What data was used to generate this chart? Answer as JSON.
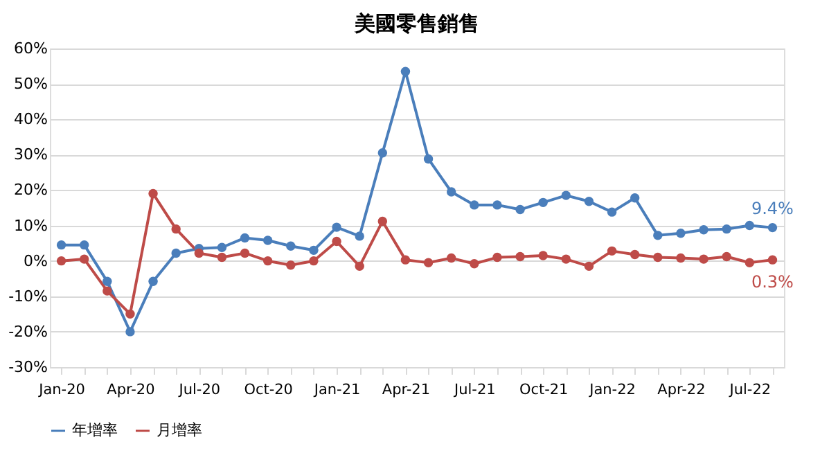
{
  "chart_data": {
    "type": "line",
    "title": "美國零售銷售",
    "categories": [
      "Jan-20",
      null,
      null,
      "Apr-20",
      null,
      null,
      "Jul-20",
      null,
      null,
      "Oct-20",
      null,
      null,
      "Jan-21",
      null,
      null,
      "Apr-21",
      null,
      null,
      "Jul-21",
      null,
      null,
      "Oct-21",
      null,
      null,
      "Jan-22",
      null,
      null,
      "Apr-22",
      null,
      null,
      "Jul-22",
      null
    ],
    "series": [
      {
        "name": "年增率",
        "color": "#4a7ebb",
        "values": [
          4.5,
          4.5,
          -5.8,
          -20,
          -5.8,
          2.2,
          3.5,
          3.8,
          6.5,
          5.8,
          4.2,
          3.0,
          9.5,
          7.0,
          30.5,
          53.5,
          28.8,
          19.5,
          15.8,
          15.8,
          14.5,
          16.5,
          18.5,
          16.8,
          13.8,
          17.8,
          7.2,
          7.8,
          8.8,
          9.0,
          10.0,
          9.4
        ],
        "value_labels": [
          null,
          null,
          null,
          null,
          null,
          null,
          null,
          null,
          null,
          null,
          null,
          null,
          null,
          null,
          null,
          null,
          null,
          null,
          null,
          null,
          null,
          null,
          null,
          null,
          null,
          null,
          null,
          null,
          null,
          null,
          null,
          "9.4%"
        ]
      },
      {
        "name": "月增率",
        "color": "#be4b48",
        "values": [
          0,
          0.5,
          -8.5,
          -15,
          19,
          9,
          2.2,
          1,
          2.2,
          0,
          -1.2,
          0,
          5.5,
          -1.5,
          11.2,
          0.3,
          -0.5,
          0.8,
          -0.8,
          1.0,
          1.2,
          1.5,
          0.5,
          -1.5,
          2.8,
          1.8,
          1.0,
          0.8,
          0.5,
          1.2,
          -0.5,
          0.3
        ],
        "value_labels": [
          null,
          null,
          null,
          null,
          null,
          null,
          null,
          null,
          null,
          null,
          null,
          null,
          null,
          null,
          null,
          null,
          null,
          null,
          null,
          null,
          null,
          null,
          null,
          null,
          null,
          null,
          null,
          null,
          null,
          null,
          null,
          "0.3%"
        ]
      }
    ],
    "ylim": [
      -30,
      60
    ],
    "yticks": [
      {
        "value": 60,
        "label": "60%"
      },
      {
        "value": 50,
        "label": "50%"
      },
      {
        "value": 40,
        "label": "40%"
      },
      {
        "value": 30,
        "label": "30%"
      },
      {
        "value": 20,
        "label": "20%"
      },
      {
        "value": 10,
        "label": "10%"
      },
      {
        "value": 0,
        "label": "0%"
      },
      {
        "value": -10,
        "label": "-10%"
      },
      {
        "value": -20,
        "label": "-20%"
      },
      {
        "value": -30,
        "label": "-30%"
      }
    ],
    "grid": "y",
    "legend": "bottom",
    "marker": "circle",
    "line_style": "solid"
  }
}
